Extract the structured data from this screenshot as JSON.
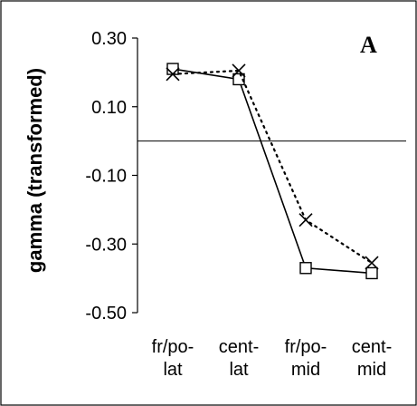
{
  "chart_data": {
    "type": "line",
    "panel_label": "A",
    "ylabel": "gamma (transformed)",
    "xlabel": "",
    "ylim": [
      -0.5,
      0.3
    ],
    "yticks": [
      0.3,
      0.1,
      -0.1,
      -0.3,
      -0.5
    ],
    "ytick_labels": [
      "0.30",
      "0.10",
      "-0.10",
      "-0.30",
      "-0.50"
    ],
    "reference_line_y": 0,
    "categories": [
      [
        "fr/po-",
        "lat"
      ],
      [
        "cent-",
        "lat"
      ],
      [
        "fr/po-",
        "mid"
      ],
      [
        "cent-",
        "mid"
      ]
    ],
    "series": [
      {
        "marker": "square",
        "style": "solid",
        "values": [
          0.21,
          0.18,
          -0.37,
          -0.385
        ]
      },
      {
        "marker": "x",
        "style": "dotted",
        "values": [
          0.195,
          0.205,
          -0.23,
          -0.355
        ]
      }
    ],
    "grid": false,
    "legend": "none"
  }
}
